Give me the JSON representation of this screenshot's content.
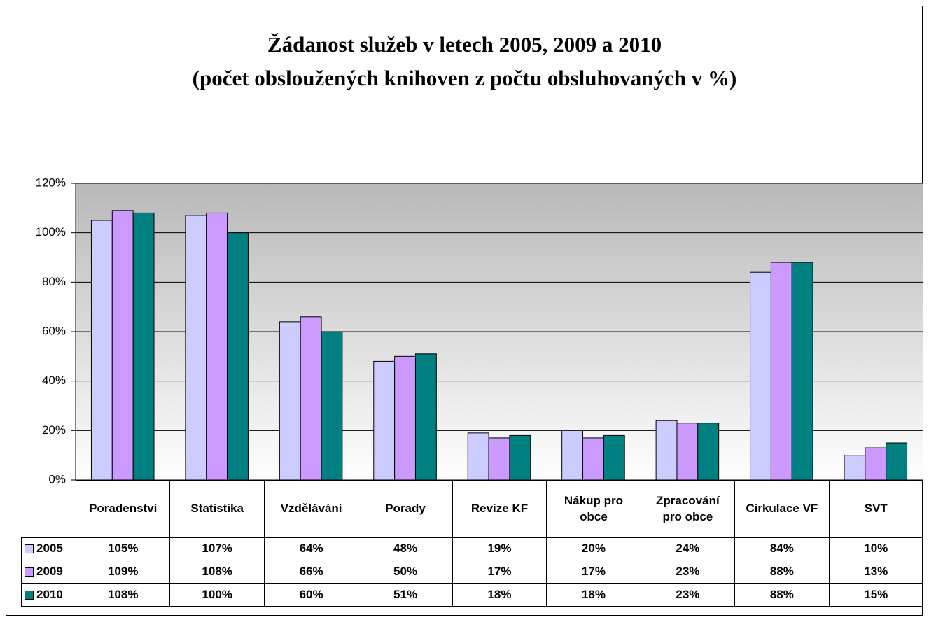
{
  "chart_data": {
    "type": "bar",
    "title": "Žádanost služeb v letech 2005, 2009 a 2010",
    "subtitle": "(počet obsloužených knihoven z počtu obsluhovaných v %)",
    "categories": [
      "Poradenství",
      "Statistika",
      "Vzdělávání",
      "Porady",
      "Revize KF",
      "Nákup pro obce",
      "Zpracování pro obce",
      "Cirkulace VF",
      "SVT"
    ],
    "series": [
      {
        "name": "2005",
        "color": "#ccccff",
        "values": [
          105,
          107,
          64,
          48,
          19,
          20,
          24,
          84,
          10
        ],
        "value_labels": [
          "105%",
          "107%",
          "64%",
          "48%",
          "19%",
          "20%",
          "24%",
          "84%",
          "10%"
        ]
      },
      {
        "name": "2009",
        "color": "#cc99ff",
        "values": [
          109,
          108,
          66,
          50,
          17,
          17,
          23,
          88,
          13
        ],
        "value_labels": [
          "109%",
          "108%",
          "66%",
          "50%",
          "17%",
          "17%",
          "23%",
          "88%",
          "13%"
        ]
      },
      {
        "name": "2010",
        "color": "#008080",
        "values": [
          108,
          100,
          60,
          51,
          18,
          18,
          23,
          88,
          15
        ],
        "value_labels": [
          "108%",
          "100%",
          "60%",
          "51%",
          "18%",
          "18%",
          "23%",
          "88%",
          "15%"
        ]
      }
    ],
    "ylim": [
      0,
      120
    ],
    "yticks": [
      {
        "value": 0,
        "label": "0%"
      },
      {
        "value": 20,
        "label": "20%"
      },
      {
        "value": 40,
        "label": "40%"
      },
      {
        "value": 60,
        "label": "60%"
      },
      {
        "value": 80,
        "label": "80%"
      },
      {
        "value": 100,
        "label": "100%"
      },
      {
        "value": 120,
        "label": "120%"
      }
    ],
    "grid": true
  }
}
